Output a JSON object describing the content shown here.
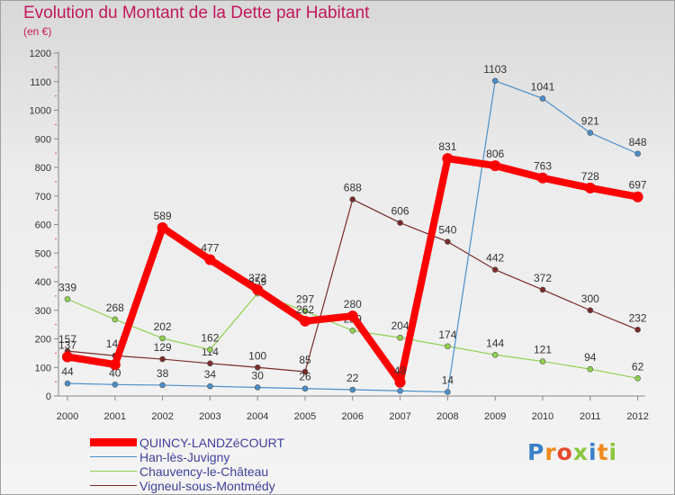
{
  "title": "Evolution du Montant de la Dette par Habitant",
  "subtitle": "(en €)",
  "logo": {
    "text": "Proxiti",
    "letters": [
      {
        "ch": "P",
        "color": "#3a7fc8"
      },
      {
        "ch": "r",
        "color": "#f08a1c"
      },
      {
        "ch": "o",
        "color": "#e64a2e"
      },
      {
        "ch": "x",
        "color": "#8cc63f"
      },
      {
        "ch": "i",
        "color": "#3a7fc8"
      },
      {
        "ch": "t",
        "color": "#f08a1c"
      },
      {
        "ch": "i",
        "color": "#8cc63f"
      }
    ]
  },
  "chart_data": {
    "type": "line",
    "x": [
      "2000",
      "2001",
      "2002",
      "2003",
      "2004",
      "2005",
      "2006",
      "2007",
      "2008",
      "2009",
      "2010",
      "2011",
      "2012"
    ],
    "ylim": [
      0,
      1200
    ],
    "yticks": [
      0,
      100,
      200,
      300,
      400,
      500,
      600,
      700,
      800,
      900,
      1000,
      1100,
      1200
    ],
    "grid": false,
    "legend_position": "bottom-left",
    "series": [
      {
        "name": "Vigneul-sous-Montmédy",
        "color": "#7b2a2a",
        "thick": false,
        "values": [
          157,
          141,
          129,
          114,
          100,
          85,
          688,
          606,
          540,
          442,
          372,
          300,
          232
        ]
      },
      {
        "name": "Chauvency-le-Château",
        "color": "#8fd14f",
        "thick": false,
        "values": [
          339,
          268,
          202,
          162,
          359,
          297,
          229,
          204,
          174,
          144,
          121,
          94,
          62
        ]
      },
      {
        "name": "Han-lès-Juvigny",
        "color": "#4b8fc9",
        "thick": false,
        "values": [
          44,
          40,
          38,
          34,
          30,
          26,
          22,
          18,
          14,
          1103,
          1041,
          921,
          848
        ]
      },
      {
        "name": "QUINCY-LANDZéCOURT",
        "color": "#ff0000",
        "thick": true,
        "values": [
          137,
          110,
          589,
          477,
          372,
          262,
          280,
          48,
          831,
          806,
          763,
          728,
          697
        ]
      }
    ],
    "data_labels": {
      "Vigneul-sous-Montmédy": [
        "157",
        "141",
        "129",
        "114",
        "100",
        "85",
        "688",
        "606",
        "540",
        "442",
        "372",
        "300",
        "232"
      ],
      "Chauvency-le-Château": [
        "339",
        "268",
        "202",
        "162",
        "359",
        "297",
        "229",
        "204",
        "174",
        "144",
        "121",
        "94",
        "62"
      ],
      "Han-lès-Juvigny": [
        "44",
        "40",
        "38",
        "34",
        "30",
        "26",
        "22",
        "",
        "14",
        "1103",
        "1041",
        "921",
        "848"
      ],
      "QUINCY-LANDZéCOURT": [
        "137",
        "",
        "589",
        "477",
        "372",
        "262",
        "280",
        "48",
        "831",
        "806",
        "763",
        "728",
        "697"
      ]
    }
  },
  "legend": [
    {
      "label": "QUINCY-LANDZéCOURT",
      "color": "#ff0000",
      "thick": true
    },
    {
      "label": "Han-lès-Juvigny",
      "color": "#4b8fc9",
      "thick": false
    },
    {
      "label": "Chauvency-le-Château",
      "color": "#8fd14f",
      "thick": false
    },
    {
      "label": "Vigneul-sous-Montmédy",
      "color": "#7b2a2a",
      "thick": false
    }
  ]
}
